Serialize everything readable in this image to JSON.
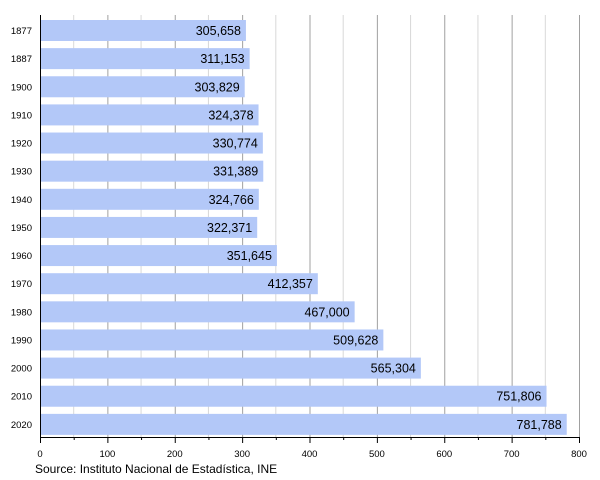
{
  "chart_data": {
    "type": "bar",
    "orientation": "horizontal",
    "categories": [
      "1877",
      "1887",
      "1900",
      "1910",
      "1920",
      "1930",
      "1940",
      "1950",
      "1960",
      "1970",
      "1980",
      "1990",
      "2000",
      "2010",
      "2020"
    ],
    "values": [
      305658,
      311153,
      303829,
      324378,
      330774,
      331389,
      324766,
      322371,
      351645,
      412357,
      467000,
      509628,
      565304,
      751806,
      781788
    ],
    "data_labels": [
      "305,658",
      "311,153",
      "303,829",
      "324,378",
      "330,774",
      "331,389",
      "324,766",
      "322,371",
      "351,645",
      "412,357",
      "467,000",
      "509,628",
      "565,304",
      "751,806",
      "781,788"
    ],
    "x_axis_unit": "thousands",
    "xlim": [
      0,
      800
    ],
    "x_ticks": [
      "0",
      "100",
      "200",
      "300",
      "400",
      "500",
      "600",
      "700",
      "800"
    ],
    "grid": true,
    "bar_color": "#b3c8f8",
    "title": "",
    "xlabel": "",
    "ylabel": ""
  },
  "source": "Source: Instituto Nacional de Estadística, INE"
}
